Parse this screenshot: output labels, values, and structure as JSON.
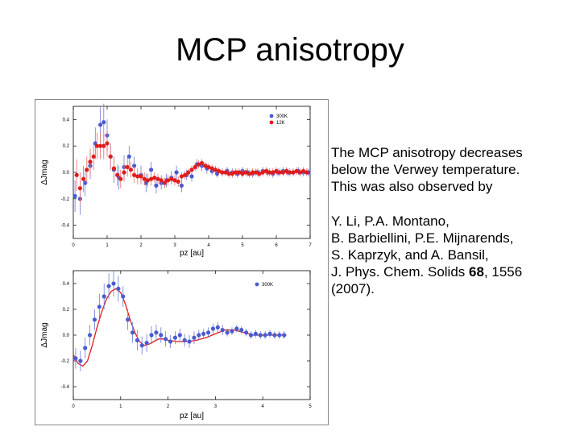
{
  "slide": {
    "title": "MCP anisotropy",
    "para1": [
      "The MCP anisotropy decreases",
      "below the Verwey temperature.",
      "This was also observed by"
    ],
    "para2": {
      "line1": "Y. Li, P.A. Montano,",
      "line2": "B. Barbiellini, P.E. Mijnarends,",
      "line3": "S. Kaprzyk, and A. Bansil,",
      "line4_pre": "J. Phys. Chem. Solids ",
      "line4_bold": "68",
      "line4_post": ", 1556",
      "line5": "(2007)."
    }
  },
  "colors": {
    "blue": "#4a5bd0",
    "red": "#e01c1c",
    "error_blue": "#6d7ad6",
    "error_red": "#ec6c6c"
  },
  "chart_data": [
    {
      "type": "scatter",
      "xlabel": "pz [au]",
      "ylabel": "ΔJmag",
      "xlim": [
        0,
        7
      ],
      "ylim": [
        -0.5,
        0.5
      ],
      "x_ticks": [
        "0",
        "1",
        "2",
        "3",
        "4",
        "5",
        "6",
        "7"
      ],
      "y_ticks": [
        "0.4",
        "0.2",
        "0.0",
        "-0.2",
        "-0.4"
      ],
      "legend_position": "top-right",
      "series": [
        {
          "name": "300K",
          "color": "blue",
          "x": [
            0.05,
            0.2,
            0.35,
            0.5,
            0.65,
            0.8,
            0.9,
            1.0,
            1.1,
            1.2,
            1.35,
            1.5,
            1.65,
            1.8,
            2.0,
            2.15,
            2.3,
            2.45,
            2.6,
            2.75,
            2.9,
            3.05,
            3.2,
            3.35,
            3.5,
            3.65,
            3.8,
            3.95,
            4.1,
            4.25,
            4.4,
            4.55,
            4.7,
            4.85,
            5.0,
            5.15,
            5.3,
            5.45,
            5.6,
            5.75,
            5.9,
            6.05,
            6.2,
            6.35,
            6.5,
            6.65,
            6.8,
            6.95
          ],
          "y": [
            -0.18,
            -0.2,
            -0.08,
            0.05,
            0.22,
            0.36,
            0.38,
            0.28,
            0.12,
            0.02,
            -0.04,
            0.04,
            0.12,
            0.05,
            -0.02,
            -0.08,
            0.02,
            -0.1,
            -0.08,
            -0.06,
            -0.04,
            0.0,
            -0.1,
            -0.02,
            -0.03,
            0.06,
            0.05,
            0.03,
            0.01,
            -0.01,
            0.0,
            0.01,
            0.0,
            -0.01,
            0.01,
            0.0,
            -0.01,
            0.0,
            0.01,
            0.0,
            -0.01,
            0.0,
            0.01,
            0.0,
            0.0,
            0.01,
            0.0,
            0.0
          ],
          "err": [
            0.12,
            0.12,
            0.1,
            0.1,
            0.12,
            0.14,
            0.14,
            0.12,
            0.1,
            0.1,
            0.09,
            0.09,
            0.08,
            0.07,
            0.07,
            0.07,
            0.06,
            0.06,
            0.05,
            0.05,
            0.05,
            0.05,
            0.05,
            0.04,
            0.04,
            0.04,
            0.04,
            0.04,
            0.03,
            0.03,
            0.03,
            0.03,
            0.03,
            0.03,
            0.03,
            0.03,
            0.03,
            0.03,
            0.03,
            0.03,
            0.03,
            0.03,
            0.03,
            0.03,
            0.03,
            0.03,
            0.03,
            0.03
          ]
        },
        {
          "name": "12K",
          "color": "red",
          "x": [
            0.1,
            0.2,
            0.3,
            0.4,
            0.5,
            0.6,
            0.7,
            0.8,
            0.9,
            1.0,
            1.1,
            1.2,
            1.3,
            1.4,
            1.5,
            1.6,
            1.7,
            1.8,
            1.9,
            2.0,
            2.1,
            2.2,
            2.3,
            2.4,
            2.5,
            2.6,
            2.7,
            2.8,
            2.9,
            3.0,
            3.1,
            3.2,
            3.3,
            3.4,
            3.5,
            3.6,
            3.7,
            3.8,
            3.9,
            4.0,
            4.1,
            4.2,
            4.3,
            4.4,
            4.5,
            4.6,
            4.7,
            4.8,
            4.9,
            5.0,
            5.1,
            5.2,
            5.3,
            5.4,
            5.5,
            5.6,
            5.7,
            5.8,
            5.9,
            6.0,
            6.1,
            6.2,
            6.3,
            6.4,
            6.5,
            6.6,
            6.7,
            6.8,
            6.9
          ],
          "y": [
            -0.02,
            -0.12,
            -0.05,
            0.02,
            0.08,
            0.12,
            0.2,
            0.2,
            0.2,
            0.22,
            0.12,
            0.03,
            -0.02,
            -0.05,
            0.0,
            0.04,
            0.02,
            -0.02,
            -0.03,
            -0.03,
            -0.05,
            -0.06,
            -0.05,
            -0.04,
            -0.05,
            -0.06,
            -0.08,
            -0.06,
            -0.05,
            -0.06,
            -0.07,
            -0.03,
            -0.02,
            0.0,
            0.02,
            0.04,
            0.06,
            0.07,
            0.05,
            0.04,
            0.03,
            0.02,
            0.01,
            0.0,
            0.0,
            -0.01,
            -0.01,
            0.0,
            0.0,
            -0.01,
            0.0,
            -0.01,
            0.0,
            0.0,
            -0.01,
            0.0,
            0.01,
            0.0,
            0.0,
            0.01,
            0.0,
            0.0,
            0.01,
            0.0,
            0.0,
            0.01,
            0.0,
            0.01,
            0.0
          ],
          "err": [
            0.12,
            0.12,
            0.1,
            0.1,
            0.1,
            0.1,
            0.1,
            0.1,
            0.1,
            0.1,
            0.09,
            0.08,
            0.08,
            0.07,
            0.07,
            0.07,
            0.06,
            0.06,
            0.06,
            0.05,
            0.05,
            0.05,
            0.05,
            0.04,
            0.04,
            0.04,
            0.04,
            0.04,
            0.04,
            0.04,
            0.04,
            0.03,
            0.03,
            0.03,
            0.03,
            0.03,
            0.03,
            0.03,
            0.03,
            0.03,
            0.03,
            0.03,
            0.03,
            0.03,
            0.03,
            0.03,
            0.03,
            0.03,
            0.03,
            0.03,
            0.03,
            0.03,
            0.03,
            0.03,
            0.03,
            0.03,
            0.03,
            0.03,
            0.03,
            0.03,
            0.03,
            0.03,
            0.03,
            0.03,
            0.03,
            0.03,
            0.03,
            0.03,
            0.03
          ]
        }
      ]
    },
    {
      "type": "scatter",
      "xlabel": "pz [au]",
      "ylabel": "ΔJmag",
      "xlim": [
        0,
        5
      ],
      "ylim": [
        -0.5,
        0.5
      ],
      "x_ticks": [
        "0",
        "1",
        "2",
        "3",
        "4",
        "5"
      ],
      "y_ticks": [
        "0.4",
        "0.2",
        "0.0",
        "-0.2",
        "-0.4"
      ],
      "legend_position": "top-right",
      "series": [
        {
          "name": "300K",
          "color": "blue",
          "x": [
            0.05,
            0.15,
            0.25,
            0.35,
            0.45,
            0.55,
            0.65,
            0.75,
            0.85,
            0.95,
            1.05,
            1.15,
            1.25,
            1.35,
            1.45,
            1.55,
            1.65,
            1.75,
            1.85,
            1.95,
            2.05,
            2.15,
            2.25,
            2.35,
            2.45,
            2.55,
            2.65,
            2.75,
            2.85,
            2.95,
            3.05,
            3.15,
            3.25,
            3.35,
            3.45,
            3.55,
            3.65,
            3.75,
            3.85,
            3.95,
            4.05,
            4.15,
            4.25,
            4.35,
            4.45
          ],
          "y": [
            -0.18,
            -0.2,
            -0.1,
            0.0,
            0.12,
            0.22,
            0.3,
            0.38,
            0.4,
            0.36,
            0.3,
            0.12,
            0.02,
            -0.04,
            -0.08,
            -0.06,
            0.0,
            0.02,
            0.0,
            -0.03,
            -0.05,
            -0.02,
            0.0,
            -0.04,
            -0.05,
            -0.02,
            0.0,
            0.01,
            0.02,
            0.05,
            0.06,
            0.04,
            0.02,
            0.03,
            0.05,
            0.04,
            0.02,
            0.0,
            0.01,
            0.0,
            0.0,
            0.01,
            0.0,
            0.0,
            0.0
          ],
          "err": [
            0.08,
            0.08,
            0.08,
            0.08,
            0.08,
            0.1,
            0.1,
            0.1,
            0.1,
            0.1,
            0.08,
            0.08,
            0.08,
            0.08,
            0.07,
            0.07,
            0.07,
            0.06,
            0.06,
            0.06,
            0.05,
            0.05,
            0.05,
            0.05,
            0.05,
            0.05,
            0.04,
            0.04,
            0.04,
            0.04,
            0.04,
            0.04,
            0.03,
            0.03,
            0.03,
            0.03,
            0.03,
            0.03,
            0.03,
            0.03,
            0.03,
            0.03,
            0.03,
            0.03,
            0.03
          ]
        }
      ],
      "curve": {
        "color": "red",
        "x": [
          0,
          0.1,
          0.2,
          0.3,
          0.4,
          0.5,
          0.6,
          0.7,
          0.8,
          0.9,
          1.0,
          1.1,
          1.2,
          1.3,
          1.4,
          1.5,
          1.6,
          1.7,
          1.8,
          1.9,
          2.0,
          2.2,
          2.4,
          2.6,
          2.8,
          3.0,
          3.2,
          3.4,
          3.6,
          3.8,
          4.0,
          4.2,
          4.4,
          4.5
        ],
        "y": [
          -0.15,
          -0.22,
          -0.24,
          -0.2,
          -0.08,
          0.06,
          0.18,
          0.28,
          0.34,
          0.36,
          0.33,
          0.24,
          0.12,
          0.02,
          -0.05,
          -0.08,
          -0.07,
          -0.05,
          -0.03,
          -0.03,
          -0.04,
          -0.05,
          -0.05,
          -0.04,
          -0.02,
          0.01,
          0.04,
          0.04,
          0.02,
          0.0,
          0.0,
          0.0,
          0.0,
          0.0
        ]
      }
    }
  ]
}
